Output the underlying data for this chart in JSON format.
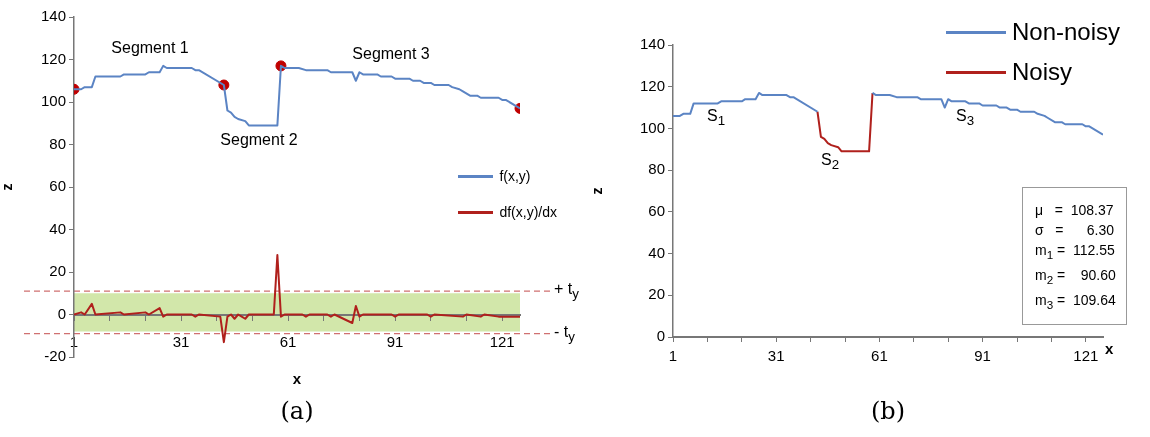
{
  "chart_data": [
    {
      "type": "line",
      "title": "(a)",
      "xlabel": "x",
      "ylabel": "z",
      "xlim": [
        1,
        126
      ],
      "ylim": [
        -20,
        140
      ],
      "xticks": [
        1,
        {
          "value": 11,
          "label": null
        },
        {
          "value": 21,
          "label": null
        },
        31,
        {
          "value": 41,
          "label": null
        },
        {
          "value": 51,
          "label": null
        },
        61,
        {
          "value": 71,
          "label": null
        },
        {
          "value": 81,
          "label": null
        },
        91,
        {
          "value": 101,
          "label": null
        },
        {
          "value": 111,
          "label": null
        },
        121
      ],
      "yticks": [
        -20,
        0,
        20,
        40,
        60,
        80,
        100,
        120,
        140
      ],
      "legend": "right",
      "series": [
        {
          "name": "f(x,y)",
          "color": "#5b84c4",
          "x": [
            1,
            3,
            4,
            6,
            7,
            14,
            15,
            21,
            22,
            25,
            26,
            27,
            34,
            35,
            36,
            43,
            44,
            45,
            46,
            47,
            49,
            50,
            58,
            59,
            60,
            64,
            66,
            72,
            73,
            79,
            80,
            81,
            82,
            86,
            87,
            90,
            91,
            95,
            96,
            98,
            99,
            101,
            102,
            106,
            107,
            109,
            110,
            112,
            114,
            115,
            120,
            121,
            122,
            126
          ],
          "values": [
            106,
            106,
            107,
            107,
            112,
            112,
            113,
            113,
            114,
            114,
            117,
            116,
            116,
            115,
            115,
            108,
            96,
            95,
            93,
            92,
            91,
            89,
            89,
            117,
            116,
            116,
            115,
            115,
            114,
            114,
            110,
            114,
            113,
            113,
            112,
            112,
            111,
            111,
            110,
            110,
            109,
            109,
            108,
            108,
            107,
            106,
            105,
            103,
            103,
            102,
            102,
            101,
            101,
            97
          ]
        },
        {
          "name": "df(x,y)/dx",
          "color": "#b0201c",
          "x": [
            1,
            3,
            4,
            6,
            7,
            14,
            15,
            21,
            22,
            25,
            26,
            27,
            34,
            35,
            36,
            42,
            43,
            44,
            45,
            46,
            47,
            48,
            49,
            50,
            57,
            58,
            59,
            60,
            65,
            66,
            67,
            72,
            73,
            74,
            79,
            80,
            81,
            82,
            90,
            91,
            92,
            100,
            101,
            102,
            110,
            111,
            115,
            116,
            120,
            126
          ],
          "values": [
            0,
            1,
            0,
            5,
            0,
            1,
            0,
            1,
            0,
            3,
            -1,
            0,
            0,
            -1,
            0,
            -1,
            -13,
            -1,
            0,
            -2,
            0,
            -1,
            -2,
            0,
            0,
            28,
            -1,
            0,
            0,
            -1,
            0,
            0,
            -1,
            0,
            -4,
            4,
            -1,
            0,
            0,
            -1,
            0,
            0,
            -1,
            0,
            -1,
            0,
            -1,
            0,
            -1,
            -1
          ]
        },
        {
          "type": "scatter",
          "marker": "circle",
          "color": "#c00000",
          "x": [
            1,
            43,
            59,
            126
          ],
          "values": [
            106,
            108,
            117,
            97
          ]
        }
      ],
      "bands": [
        {
          "axis": "y",
          "from": -8,
          "to": 10,
          "color": "#d2e7aa"
        }
      ],
      "ref_lines": [
        {
          "axis": "y",
          "value": 11,
          "label": "+ t$_{y}$",
          "color": "#d07070",
          "line_style": "dashed"
        },
        {
          "axis": "y",
          "value": -9,
          "label": "- t$_{y}$",
          "color": "#d07070",
          "line_style": "dashed"
        }
      ],
      "annotations": [
        "Segment 1",
        "Segment 2",
        "Segment 3"
      ]
    },
    {
      "type": "line",
      "title": "(b)",
      "xlabel": "x",
      "ylabel": "z",
      "xlim": [
        1,
        126
      ],
      "ylim": [
        0,
        140
      ],
      "xticks": [
        1,
        {
          "value": 11,
          "label": null
        },
        {
          "value": 21,
          "label": null
        },
        31,
        {
          "value": 41,
          "label": null
        },
        {
          "value": 51,
          "label": null
        },
        61,
        {
          "value": 71,
          "label": null
        },
        {
          "value": 81,
          "label": null
        },
        91,
        {
          "value": 101,
          "label": null
        },
        {
          "value": 111,
          "label": null
        },
        121
      ],
      "yticks": [
        0,
        20,
        40,
        60,
        80,
        100,
        120,
        140
      ],
      "legend": "top right",
      "series": [
        {
          "name": "Non-noisy",
          "color": "#5b84c4",
          "x": [
            1,
            3,
            4,
            6,
            7,
            14,
            15,
            21,
            22,
            25,
            26,
            27,
            34,
            35,
            36,
            43,
            50,
            59,
            60,
            64,
            66,
            72,
            73,
            79,
            80,
            81,
            82,
            86,
            87,
            90,
            91,
            95,
            96,
            98,
            99,
            101,
            102,
            106,
            107,
            109,
            110,
            112,
            114,
            115,
            120,
            121,
            122,
            126
          ],
          "values": [
            106,
            106,
            107,
            107,
            112,
            112,
            113,
            113,
            114,
            114,
            117,
            116,
            116,
            115,
            115,
            108,
            null,
            117,
            116,
            116,
            115,
            115,
            114,
            114,
            110,
            114,
            113,
            113,
            112,
            112,
            111,
            111,
            110,
            110,
            109,
            109,
            108,
            108,
            107,
            106,
            105,
            103,
            103,
            102,
            102,
            101,
            101,
            97
          ]
        },
        {
          "name": "Noisy",
          "color": "#b0201c",
          "x": [
            43,
            44,
            45,
            46,
            47,
            49,
            50,
            58,
            59
          ],
          "values": [
            108,
            96,
            95,
            93,
            92,
            91,
            89,
            89,
            117
          ]
        }
      ],
      "annotations": [
        "S$_{1}$",
        "S$_{2}$",
        "S$_{3}$",
        "μ   =  108.37",
        "σ   =      6.30",
        "m$_{1}$ =  112.55",
        "m$_{2}$ =    90.60",
        "m$_{3}$ =  109.64"
      ]
    }
  ]
}
